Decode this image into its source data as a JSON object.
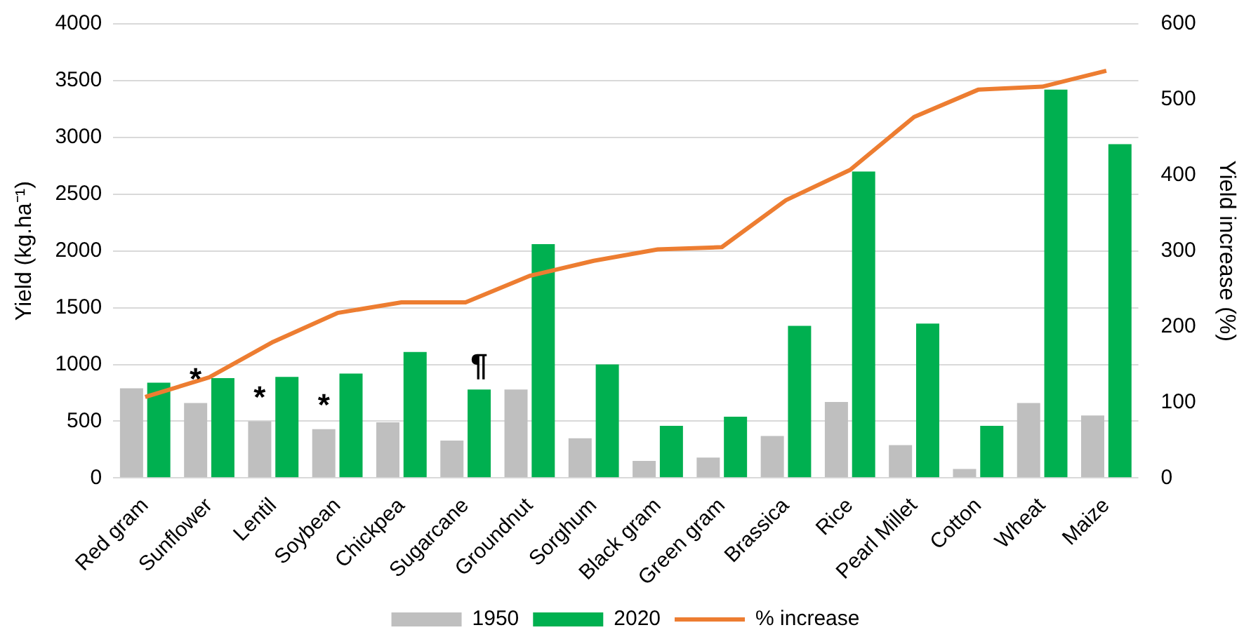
{
  "chart_data": {
    "type": "bar",
    "ylabel": "Yield (kg.ha⁻¹)",
    "y2label": "Yield increase (%)",
    "categories": [
      "Red gram",
      "Sunflower",
      "Lentil",
      "Soybean",
      "Chickpea",
      "Sugarcane",
      "Groundnut",
      "Sorghum",
      "Black gram",
      "Green gram",
      "Brassica",
      "Rice",
      "Pearl Millet",
      "Cotton",
      "Wheat",
      "Maize"
    ],
    "series": [
      {
        "name": "1950",
        "color": "#bfbfbf",
        "values": [
          790,
          660,
          500,
          430,
          490,
          330,
          780,
          350,
          150,
          180,
          370,
          670,
          290,
          80,
          660,
          550
        ]
      },
      {
        "name": "2020",
        "color": "#00b050",
        "values": [
          840,
          880,
          890,
          920,
          1110,
          780,
          2060,
          1000,
          460,
          540,
          1340,
          2700,
          1360,
          460,
          3420,
          2940
        ]
      },
      {
        "name": "% increase",
        "type": "line",
        "axis": "y2",
        "color": "#ed7d31",
        "values": [
          107,
          133,
          180,
          218,
          232,
          232,
          267,
          287,
          302,
          305,
          367,
          407,
          477,
          513,
          517,
          538
        ]
      }
    ],
    "ylim": [
      0,
      4000
    ],
    "yticks": [
      0,
      500,
      1000,
      1500,
      2000,
      2500,
      3000,
      3500,
      4000
    ],
    "y2lim": [
      0,
      600
    ],
    "y2ticks": [
      0,
      100,
      200,
      300,
      400,
      500,
      600
    ],
    "annotations": [
      {
        "text": "*",
        "x": "Sunflower",
        "y": 660
      },
      {
        "text": "*",
        "x": "Lentil",
        "y": 500
      },
      {
        "text": "*",
        "x": "Soybean",
        "y": 430
      },
      {
        "text": "¶",
        "x": "Sugarcane",
        "y": 780
      }
    ],
    "grid": "y",
    "legend": "bottom",
    "marker": "none"
  }
}
